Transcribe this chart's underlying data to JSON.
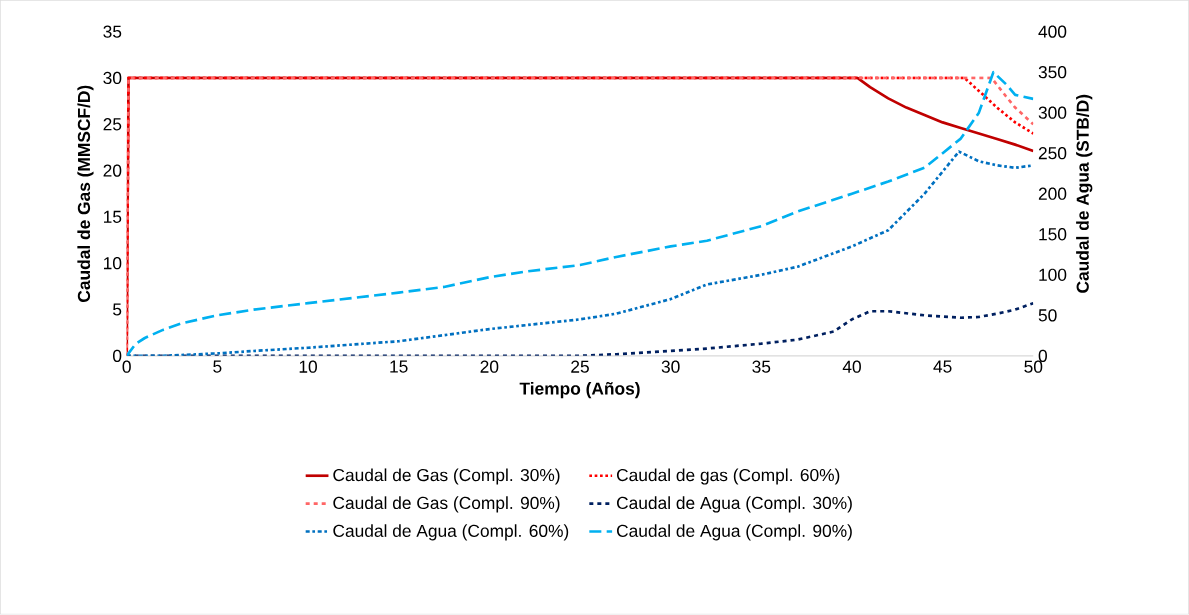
{
  "chart_data": {
    "type": "line",
    "xlabel": "Tiempo (Años)",
    "ylabel": "Caudal de Gas (MMSCF/D)",
    "y2label": "Caudal de Agua (STB/D)",
    "xlim": [
      0,
      50
    ],
    "xticks": [
      0,
      5,
      10,
      15,
      20,
      25,
      30,
      35,
      40,
      45,
      50
    ],
    "ylim": [
      0,
      35
    ],
    "yticks": [
      0,
      5,
      10,
      15,
      20,
      25,
      30,
      35
    ],
    "y2lim": [
      0,
      400
    ],
    "y2ticks": [
      0,
      50,
      100,
      150,
      200,
      250,
      300,
      350,
      400
    ],
    "legend": "bottom",
    "marker": "none",
    "series": [
      {
        "name": "Caudal de Gas (Compl. 30%)",
        "color": "#c00000",
        "line_style": "solid",
        "x": [
          0,
          0.1,
          40.3,
          41,
          42,
          43,
          44,
          45,
          46,
          47,
          48,
          49,
          50
        ],
        "values": [
          0,
          30,
          30,
          29,
          27.8,
          26.8,
          26,
          25.2,
          24.6,
          24,
          23.4,
          22.8,
          22.1
        ]
      },
      {
        "name": "Caudal de gas (Compl. 60%)",
        "color": "#ff0000",
        "line_style": "dotted",
        "x": [
          0,
          0.1,
          46.2,
          47,
          48,
          49,
          50
        ],
        "values": [
          0,
          30,
          30,
          28.6,
          26.8,
          25.2,
          24
        ]
      },
      {
        "name": "Caudal de Gas (Compl. 90%)",
        "color": "#ff6666",
        "line_style": "dashed",
        "x": [
          0,
          0.1,
          47.7,
          48.5,
          49,
          50
        ],
        "values": [
          0,
          30,
          30,
          28,
          26.8,
          25
        ]
      },
      {
        "name": "Caudal de Agua (Compl. 30%)",
        "color": "#002060",
        "line_style": "dashed",
        "axis": "y2",
        "x": [
          0,
          25,
          27,
          30,
          32,
          35,
          37,
          39,
          40,
          41,
          42,
          44,
          46,
          47,
          48,
          49,
          50
        ],
        "values": [
          0,
          0,
          2,
          6,
          9,
          15,
          20,
          30,
          45,
          55,
          55,
          50,
          47,
          48,
          52,
          57,
          65
        ]
      },
      {
        "name": "Caudal de Agua (Compl. 60%)",
        "color": "#0070c0",
        "line_style": "dashdot",
        "axis": "y2",
        "x": [
          0,
          2,
          5,
          7,
          10,
          15,
          20,
          25,
          27,
          30,
          32,
          35,
          37,
          40,
          42,
          44,
          45.9,
          47,
          48,
          49,
          50
        ],
        "values": [
          0,
          0,
          3,
          6,
          10,
          18,
          33,
          45,
          52,
          70,
          88,
          100,
          110,
          135,
          155,
          200,
          252,
          240,
          235,
          232,
          235
        ]
      },
      {
        "name": "Caudal de Agua (Compl. 90%)",
        "color": "#00b0f0",
        "line_style": "longdash",
        "axis": "y2",
        "x": [
          0,
          0.5,
          1,
          2,
          3,
          5,
          7,
          10,
          15,
          17.5,
          20,
          22,
          25,
          27,
          30,
          32,
          35,
          37,
          40,
          42,
          44,
          45,
          46,
          47,
          47.8,
          48.5,
          49,
          50
        ],
        "values": [
          0,
          15,
          22,
          32,
          40,
          50,
          57,
          65,
          78,
          85,
          97,
          104,
          112,
          122,
          135,
          142,
          160,
          178,
          200,
          215,
          232,
          250,
          268,
          300,
          350,
          335,
          322,
          317
        ]
      }
    ]
  }
}
